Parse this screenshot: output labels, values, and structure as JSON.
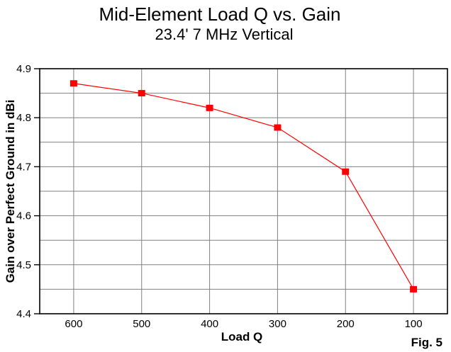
{
  "chart_data": {
    "type": "line",
    "title": "Mid-Element Load Q vs. Gain",
    "subtitle": "23.4' 7 MHz Vertical",
    "xlabel": "Load Q",
    "ylabel": "Gain over Perfect Ground in dBi",
    "figure_label": "Fig. 5",
    "x": [
      600,
      500,
      400,
      300,
      200,
      100
    ],
    "y": [
      4.87,
      4.85,
      4.82,
      4.78,
      4.69,
      4.45
    ],
    "x_ticks": [
      600,
      500,
      400,
      300,
      200,
      100
    ],
    "y_ticks": [
      4.9,
      4.8,
      4.7,
      4.6,
      4.5,
      4.4
    ],
    "y_minor_step": 0.05,
    "xlim": [
      650,
      50
    ],
    "ylim": [
      4.4,
      4.9
    ],
    "x_axis_reversed": true,
    "grid": true,
    "legend": "none",
    "line_color": "#ff0000",
    "marker": "square",
    "marker_color": "#ff0000",
    "grid_color": "#808080",
    "axis_color": "#000000",
    "background_color": "#ffffff"
  }
}
